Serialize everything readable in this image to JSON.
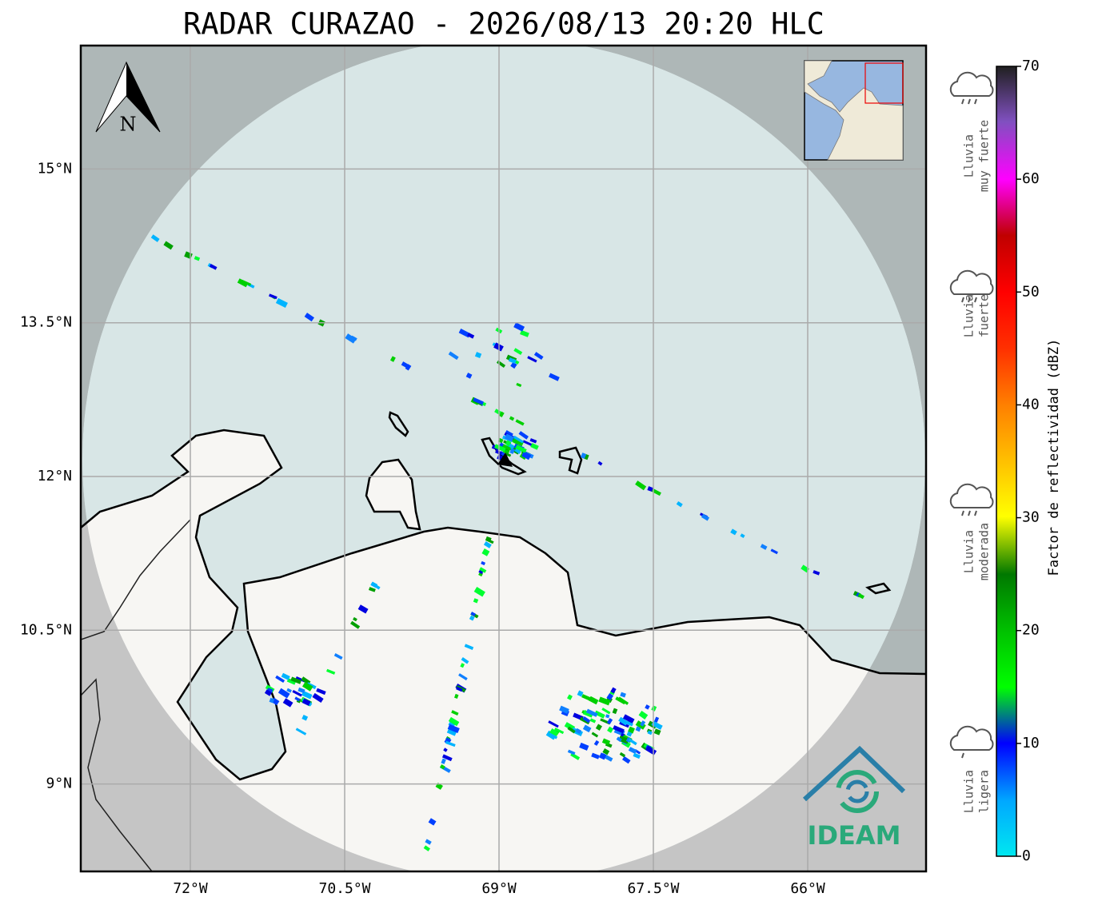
{
  "title": "RADAR CURAZAO - 2026/08/13 20:20 HLC",
  "map": {
    "lat_ticks": [
      {
        "value": 15,
        "label": "15°N"
      },
      {
        "value": 13.5,
        "label": "13.5°N"
      },
      {
        "value": 12,
        "label": "12°N"
      },
      {
        "value": 10.5,
        "label": "10.5°N"
      },
      {
        "value": 9,
        "label": "9°N"
      }
    ],
    "lon_ticks": [
      {
        "value": -72,
        "label": "72°W"
      },
      {
        "value": -70.5,
        "label": "70.5°W"
      },
      {
        "value": -69,
        "label": "69°W"
      },
      {
        "value": -67.5,
        "label": "67.5°W"
      },
      {
        "value": -66,
        "label": "66°W"
      }
    ],
    "compass": "N"
  },
  "colorbar": {
    "label": "Factor de reflectividad (dBZ)",
    "range": [
      0,
      70
    ],
    "ticks": [
      0,
      10,
      20,
      30,
      40,
      50,
      60,
      70
    ]
  },
  "rain_legend": [
    [
      "Lluvia",
      "muy fuerte"
    ],
    [
      "Lluvia",
      "fuerte"
    ],
    [
      "Lluvia",
      "moderada"
    ],
    [
      "Lluvia",
      "ligera"
    ]
  ],
  "logo": "IDEAM"
}
